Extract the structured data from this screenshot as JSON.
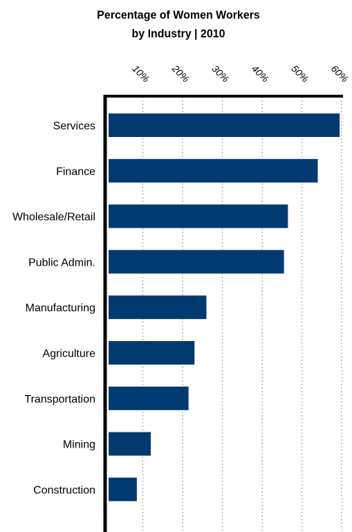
{
  "chart_data": {
    "type": "bar",
    "orientation": "horizontal",
    "title_lines": [
      "Percentage of Women Workers",
      "by Industry  |  2010"
    ],
    "categories": [
      "Services",
      "Finance",
      "Wholesale/Retail",
      "Public Admin.",
      "Manufacturing",
      "Agriculture",
      "Transportation",
      "Mining",
      "Construction"
    ],
    "values": [
      59.5,
      54,
      46.5,
      45.5,
      26,
      23,
      21.5,
      12,
      8.5
    ],
    "xaxis": {
      "ticks": [
        10,
        20,
        30,
        40,
        50,
        60
      ],
      "tick_labels": [
        "10%",
        "20%",
        "30%",
        "40%",
        "50%",
        "60%"
      ],
      "position": "top",
      "label_rotation": 45
    },
    "xlim": [
      0,
      60
    ],
    "grid": "vertical dotted",
    "legend": "none",
    "colors": {
      "bar": "#003a70",
      "gridline": "#b3b3b3",
      "axis": "#000000"
    }
  }
}
